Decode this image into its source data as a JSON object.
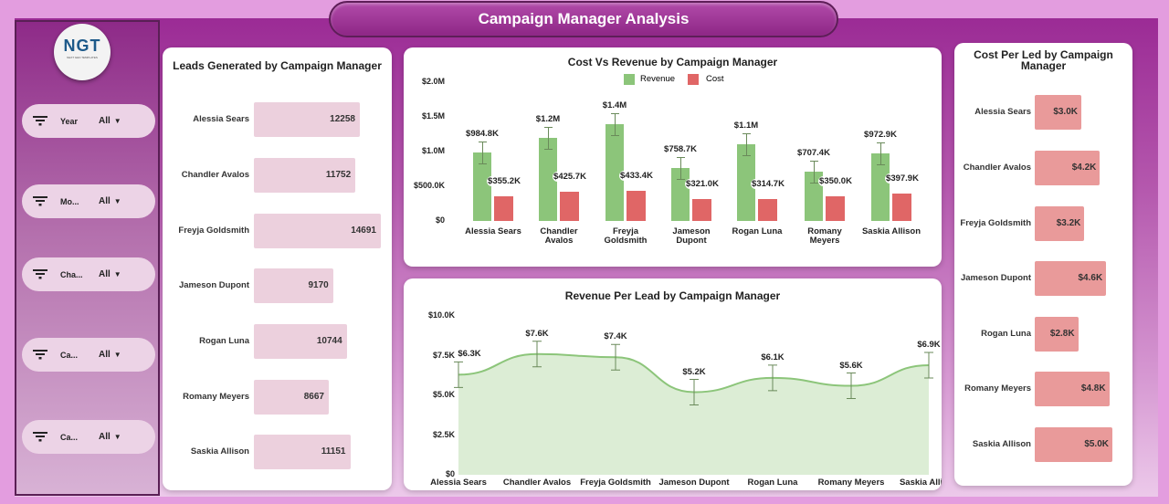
{
  "header": {
    "title": "Campaign Manager Analysis"
  },
  "logo": {
    "text": "NGT",
    "tagline": "NEXT GEN TEMPLATES"
  },
  "filters": [
    {
      "label": "Year",
      "value": "All"
    },
    {
      "label": "Mo...",
      "value": "All"
    },
    {
      "label": "Cha...",
      "value": "All"
    },
    {
      "label": "Ca...",
      "value": "All"
    },
    {
      "label": "Ca...",
      "value": "All"
    }
  ],
  "colors": {
    "leads_bar": "#ecd0dd",
    "revenue": "#8cc57a",
    "cost": "#e06666",
    "cpl_bar": "#e99a9a",
    "area_fill": "#dcedd5",
    "area_line": "#8cc57a"
  },
  "chart_data": [
    {
      "type": "bar",
      "orientation": "horizontal",
      "title": "Leads Generated by Campaign Manager",
      "categories": [
        "Alessia Sears",
        "Chandler Avalos",
        "Freyja Goldsmith",
        "Jameson Dupont",
        "Rogan Luna",
        "Romany Meyers",
        "Saskia Allison"
      ],
      "values": [
        12258,
        11752,
        14691,
        9170,
        10744,
        8667,
        11151
      ],
      "labels": [
        "12258",
        "11752",
        "14691",
        "9170",
        "10744",
        "8667",
        "11151"
      ]
    },
    {
      "type": "bar",
      "title": "Cost Vs Revenue by Campaign Manager",
      "legend": "top-center",
      "categories": [
        "Alessia Sears",
        "Chandler Avalos",
        "Freyja Goldsmith",
        "Jameson Dupont",
        "Rogan Luna",
        "Romany Meyers",
        "Saskia Allison"
      ],
      "yticks": [
        "$0",
        "$500.0K",
        "$1.0M",
        "$1.5M",
        "$2.0M"
      ],
      "ylim": [
        0,
        2000000
      ],
      "series": [
        {
          "name": "Revenue",
          "values": [
            984800,
            1200000,
            1400000,
            758700,
            1100000,
            707400,
            972900
          ],
          "labels": [
            "$984.8K",
            "$1.2M",
            "$1.4M",
            "$758.7K",
            "$1.1M",
            "$707.4K",
            "$972.9K"
          ]
        },
        {
          "name": "Cost",
          "values": [
            355200,
            425700,
            433400,
            321000,
            314700,
            350000,
            397900
          ],
          "labels": [
            "$355.2K",
            "$425.7K",
            "$433.4K",
            "$321.0K",
            "$314.7K",
            "$350.0K",
            "$397.9K"
          ]
        }
      ]
    },
    {
      "type": "area",
      "title": "Revenue Per Lead by Campaign Manager",
      "categories": [
        "Alessia Sears",
        "Chandler Avalos",
        "Freyja Goldsmith",
        "Jameson Dupont",
        "Rogan Luna",
        "Romany Meyers",
        "Saskia Allison"
      ],
      "values": [
        6300,
        7600,
        7400,
        5200,
        6100,
        5600,
        6900
      ],
      "labels": [
        "$6.3K",
        "$7.6K",
        "$7.4K",
        "$5.2K",
        "$6.1K",
        "$5.6K",
        "$6.9K"
      ],
      "yticks": [
        "$0",
        "$2.5K",
        "$5.0K",
        "$7.5K",
        "$10.0K"
      ],
      "ylim": [
        0,
        10000
      ]
    },
    {
      "type": "bar",
      "orientation": "horizontal",
      "title": "Cost Per Led by Campaign Manager",
      "categories": [
        "Alessia Sears",
        "Chandler Avalos",
        "Freyja Goldsmith",
        "Jameson Dupont",
        "Rogan Luna",
        "Romany Meyers",
        "Saskia Allison"
      ],
      "values": [
        3000,
        4200,
        3200,
        4600,
        2800,
        4800,
        5000
      ],
      "labels": [
        "$3.0K",
        "$4.2K",
        "$3.2K",
        "$4.6K",
        "$2.8K",
        "$4.8K",
        "$5.0K"
      ]
    }
  ]
}
